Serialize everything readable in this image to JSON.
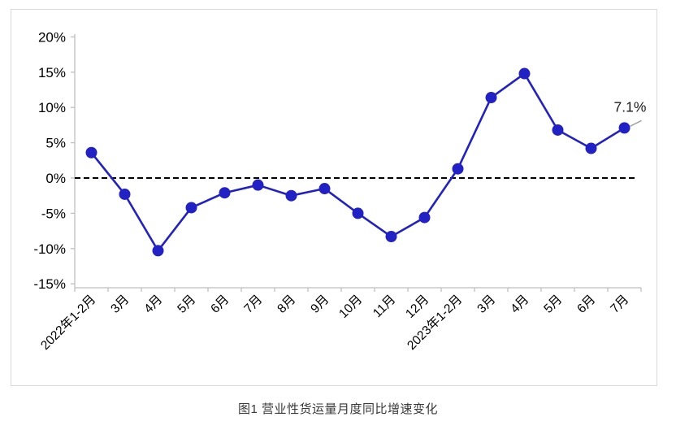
{
  "figure": {
    "caption": "图1 营业性货运量月度同比增速变化"
  },
  "chart_data": {
    "type": "line",
    "title": "图1 营业性货运量月度同比增速变化",
    "xlabel": "",
    "ylabel": "",
    "categories": [
      "2022年1-2月",
      "3月",
      "4月",
      "5月",
      "6月",
      "7月",
      "8月",
      "9月",
      "10月",
      "11月",
      "12月",
      "2023年1-2月",
      "3月",
      "4月",
      "5月",
      "6月",
      "7月"
    ],
    "values": [
      3.6,
      -2.3,
      -10.3,
      -4.2,
      -2.1,
      -1.0,
      -2.5,
      -1.5,
      -5.0,
      -8.3,
      -5.6,
      1.3,
      11.4,
      14.8,
      6.8,
      4.2,
      7.1
    ],
    "ylim": [
      -15,
      20
    ],
    "yticks": [
      20,
      15,
      10,
      5,
      0,
      -5,
      -10,
      -15
    ],
    "ytick_suffix": "%",
    "grid": false,
    "legend": false,
    "zero_line_style": "dashed",
    "x_label_rotation_deg": 45,
    "annotation": {
      "text": "7.1%",
      "category_index": 16
    },
    "colors": {
      "line": "#2222c4",
      "marker": "#2222c4",
      "zero_line": "#000000",
      "axis": "#bfbfbf",
      "tick_text": "#000000",
      "annotation_text": "#1a1a1a",
      "leader_line": "#9b9b9b",
      "frame_border": "#d9d9d9",
      "background": "#ffffff"
    }
  }
}
